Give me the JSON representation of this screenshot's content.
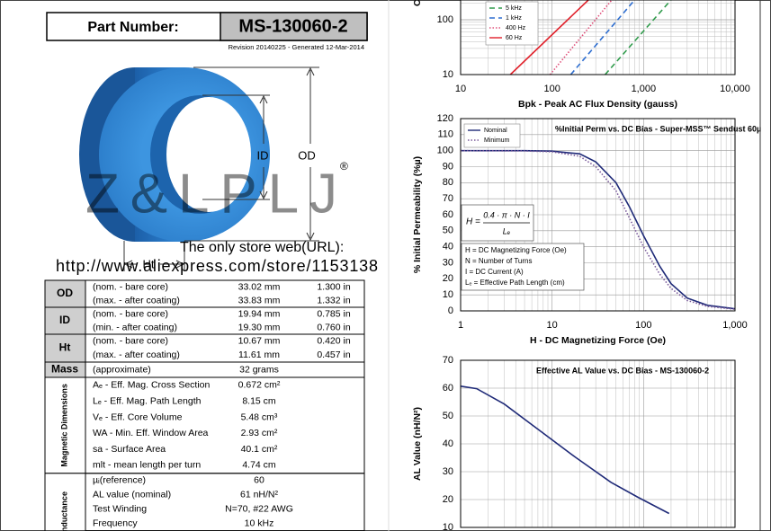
{
  "header": {
    "part_label": "Part Number:",
    "part_number": "MS-130060-2",
    "revision": "Revision 20140225 - Generated 12-Mar-2014"
  },
  "figure": {
    "id_label": "ID",
    "od_label": "OD",
    "ht_label": "Ht",
    "watermark": "Z&LPLJ",
    "watermark_mark": "®",
    "store_text": "The only store web(URL):",
    "store_url": "http://www.aliexpress.com/store/1153138"
  },
  "table": {
    "groups": [
      {
        "label": "OD",
        "rows": [
          [
            "(nom. - bare core)",
            "33.02 mm",
            "1.300 in"
          ],
          [
            "(max. - after coating)",
            "33.83 mm",
            "1.332 in"
          ]
        ]
      },
      {
        "label": "ID",
        "rows": [
          [
            "(nom. - bare core)",
            "19.94 mm",
            "0.785 in"
          ],
          [
            "(min. - after coating)",
            "19.30 mm",
            "0.760 in"
          ]
        ]
      },
      {
        "label": "Ht",
        "rows": [
          [
            "(nom. - bare core)",
            "10.67 mm",
            "0.420 in"
          ],
          [
            "(max. - after coating)",
            "11.61 mm",
            "0.457 in"
          ]
        ]
      },
      {
        "label": "Mass",
        "rows": [
          [
            "(approximate)",
            "32 grams"
          ]
        ]
      },
      {
        "label": "Magnetic Dimensions",
        "rows": [
          [
            "Aₑ - Eff. Mag. Cross Section",
            "0.672 cm²"
          ],
          [
            "Lₑ - Eff. Mag. Path Length",
            "8.15 cm"
          ],
          [
            "Vₑ - Eff. Core Volume",
            "5.48 cm³"
          ],
          [
            "WA - Min. Eff. Window Area",
            "2.93 cm²"
          ],
          [
            "sa - Surface Area",
            "40.1 cm²"
          ],
          [
            "mlt - mean length per turn",
            "4.74 cm"
          ]
        ]
      },
      {
        "label": "Inductance",
        "rows": [
          [
            "µᵢ(reference)",
            "60"
          ],
          [
            "AL value (nominal)",
            "61 nH/N²"
          ],
          [
            "Test Winding",
            "N=70, #22 AWG"
          ],
          [
            "Frequency",
            "10 kHz"
          ]
        ]
      }
    ]
  },
  "charts": [
    {
      "type": "line",
      "y_label": "Core Loss",
      "x_label": "Bpk - Peak AC Flux Density (gauss)",
      "log_x": true,
      "log_y": true,
      "xlim": [
        10,
        10000
      ],
      "xticks": [
        10,
        100,
        {
          "value": 1000,
          "label": "1,000"
        },
        {
          "value": 10000,
          "label": "10,000"
        }
      ],
      "ylim": [
        10,
        1000
      ],
      "yticks": [
        10,
        100
      ],
      "grid": true,
      "series": [
        {
          "name": "5 kHz",
          "color": "#2e9a4a",
          "dash": "dashed",
          "x": [
            380,
            2000
          ],
          "values": [
            10,
            230
          ]
        },
        {
          "name": "1 kHz",
          "color": "#2f6fd0",
          "dash": "dashed",
          "x": [
            160,
            800
          ],
          "values": [
            10,
            230
          ]
        },
        {
          "name": "400 Hz",
          "color": "#e0507a",
          "dash": "dotted",
          "x": [
            95,
            450
          ],
          "values": [
            10,
            230
          ]
        },
        {
          "name": "60 Hz",
          "color": "#e0202a",
          "dash": "solid",
          "x": [
            35,
            250
          ],
          "values": [
            10,
            230
          ]
        }
      ]
    },
    {
      "type": "line",
      "title": "%Initial Perm vs. DC Bias - Super-MSS™ Sendust  60µ",
      "y_label": "% Initial Permeability (%µ)",
      "x_label": "H - DC Magnetizing Force (Oe)",
      "log_x": true,
      "log_y": false,
      "xlim": [
        1,
        1000
      ],
      "xticks": [
        1,
        10,
        100,
        {
          "value": 1000,
          "label": "1,000"
        }
      ],
      "ylim": [
        0,
        120
      ],
      "yticks": [
        0,
        10,
        20,
        30,
        40,
        50,
        60,
        70,
        80,
        90,
        100,
        110,
        120
      ],
      "grid": true,
      "formula": {
        "lhs": "H =",
        "numerator": "0.4 · π · N · I",
        "denominator": "Lₑ"
      },
      "definitions": [
        "H = DC Magnetizing Force (Oe)",
        "N = Number of Turns",
        "I = DC Current (A)",
        "Lₑ = Effective Path Length (cm)"
      ],
      "series": [
        {
          "name": "Nominal",
          "color": "#1f2a78",
          "dash": "solid",
          "x": [
            1,
            5,
            10,
            20,
            30,
            50,
            70,
            100,
            150,
            200,
            300,
            500,
            1000
          ],
          "values": [
            100,
            100,
            99.7,
            98,
            93,
            80,
            65,
            47,
            28,
            17,
            8,
            3.5,
            1.3
          ]
        },
        {
          "name": "Minimum",
          "color": "#7a5a9a",
          "dash": "dotted",
          "x": [
            1,
            5,
            10,
            20,
            30,
            50,
            70,
            100,
            150,
            200,
            300,
            500,
            1000
          ],
          "values": [
            100,
            99.8,
            99.3,
            96.5,
            90,
            75,
            58,
            40,
            23,
            14,
            6.5,
            2.8,
            1
          ]
        }
      ]
    },
    {
      "type": "line",
      "title": "Effective AL Value vs. DC Bias - MS-130060-2",
      "y_label": "AL Value (nH/N²)",
      "log_x": true,
      "log_y": false,
      "xlim": [
        1,
        1000
      ],
      "ylim": [
        10,
        70
      ],
      "yticks": [
        10,
        20,
        30,
        40,
        50,
        60,
        70
      ],
      "grid": true,
      "color": "#1f2a78",
      "x": [
        1,
        1.5,
        3,
        7.3,
        18,
        44,
        87,
        190
      ],
      "values": [
        60.7,
        59.8,
        54.3,
        44.8,
        35.2,
        26.2,
        20.8,
        15
      ]
    }
  ]
}
